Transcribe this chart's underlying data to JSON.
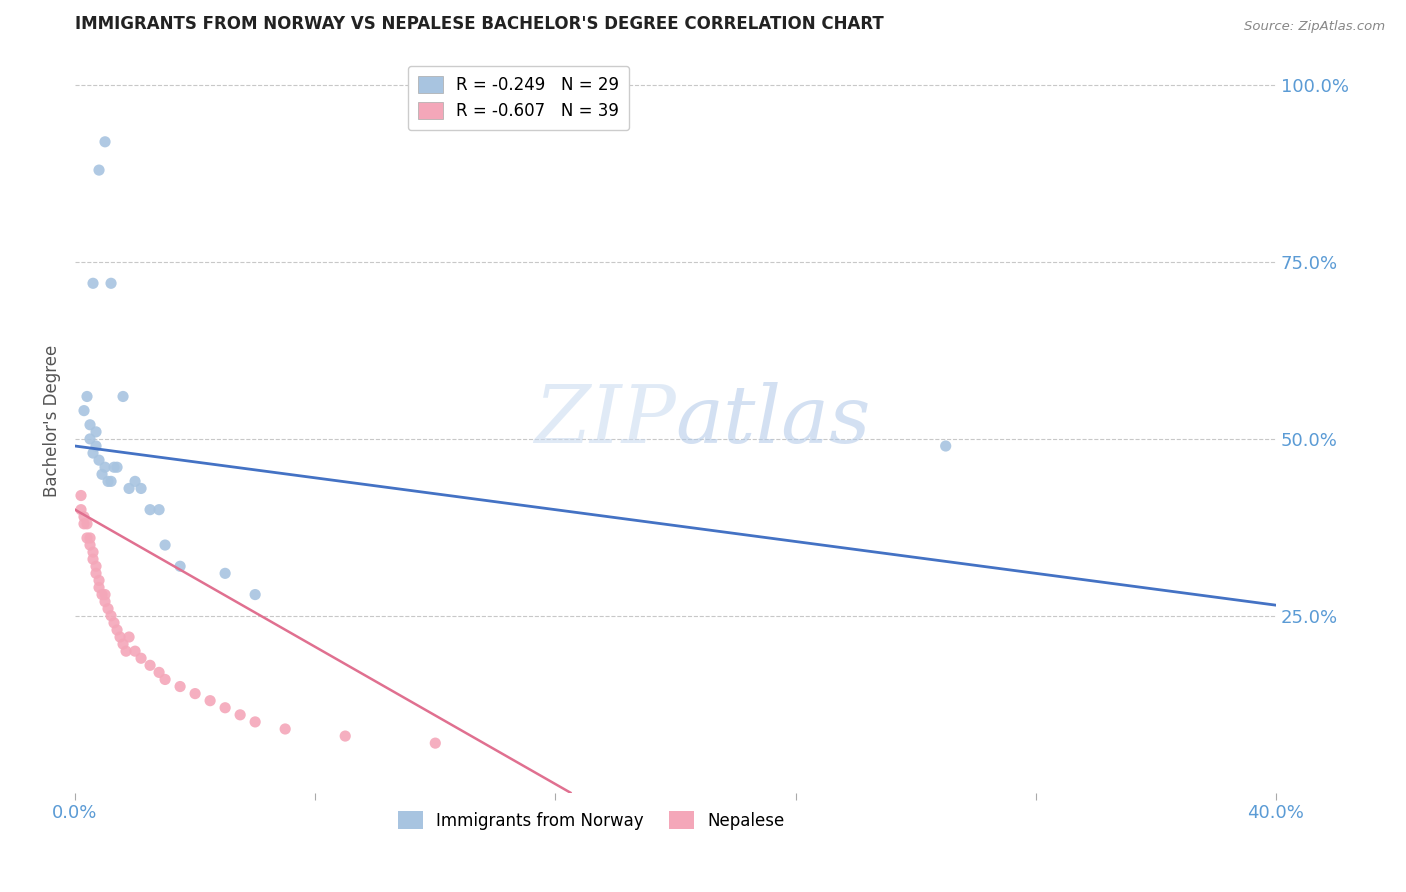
{
  "title": "IMMIGRANTS FROM NORWAY VS NEPALESE BACHELOR'S DEGREE CORRELATION CHART",
  "source": "Source: ZipAtlas.com",
  "ylabel": "Bachelor's Degree",
  "right_ytick_labels": [
    "100.0%",
    "75.0%",
    "50.0%",
    "25.0%"
  ],
  "right_ytick_values": [
    1.0,
    0.75,
    0.5,
    0.25
  ],
  "xlim": [
    0.0,
    0.4
  ],
  "ylim": [
    0.0,
    1.05
  ],
  "norway_R": -0.249,
  "norway_N": 29,
  "nepal_R": -0.607,
  "nepal_N": 39,
  "legend_label_norway": "Immigrants from Norway",
  "legend_label_nepal": "Nepalese",
  "norway_color": "#a8c4e0",
  "norway_line_color": "#4472c4",
  "nepal_color": "#f4a7b9",
  "nepal_line_color": "#e07090",
  "norway_scatter_x": [
    0.003,
    0.004,
    0.005,
    0.005,
    0.006,
    0.007,
    0.007,
    0.008,
    0.009,
    0.01,
    0.011,
    0.012,
    0.013,
    0.014,
    0.016,
    0.018,
    0.02,
    0.022,
    0.025,
    0.028,
    0.03,
    0.035,
    0.05,
    0.06,
    0.008,
    0.01,
    0.012,
    0.29,
    0.006
  ],
  "norway_scatter_y": [
    0.54,
    0.56,
    0.5,
    0.52,
    0.48,
    0.49,
    0.51,
    0.47,
    0.45,
    0.46,
    0.44,
    0.44,
    0.46,
    0.46,
    0.56,
    0.43,
    0.44,
    0.43,
    0.4,
    0.4,
    0.35,
    0.32,
    0.31,
    0.28,
    0.88,
    0.92,
    0.72,
    0.49,
    0.72
  ],
  "nepal_scatter_x": [
    0.002,
    0.002,
    0.003,
    0.003,
    0.004,
    0.004,
    0.005,
    0.005,
    0.006,
    0.006,
    0.007,
    0.007,
    0.008,
    0.008,
    0.009,
    0.01,
    0.01,
    0.011,
    0.012,
    0.013,
    0.014,
    0.015,
    0.016,
    0.017,
    0.018,
    0.02,
    0.022,
    0.025,
    0.028,
    0.03,
    0.035,
    0.04,
    0.045,
    0.05,
    0.055,
    0.06,
    0.07,
    0.09,
    0.12
  ],
  "nepal_scatter_y": [
    0.42,
    0.4,
    0.39,
    0.38,
    0.38,
    0.36,
    0.35,
    0.36,
    0.34,
    0.33,
    0.32,
    0.31,
    0.3,
    0.29,
    0.28,
    0.27,
    0.28,
    0.26,
    0.25,
    0.24,
    0.23,
    0.22,
    0.21,
    0.2,
    0.22,
    0.2,
    0.19,
    0.18,
    0.17,
    0.16,
    0.15,
    0.14,
    0.13,
    0.12,
    0.11,
    0.1,
    0.09,
    0.08,
    0.07
  ],
  "norway_trendline_x": [
    0.0,
    0.4
  ],
  "norway_trendline_y": [
    0.49,
    0.265
  ],
  "nepal_trendline_x": [
    0.0,
    0.165
  ],
  "nepal_trendline_y": [
    0.4,
    0.0
  ],
  "background_color": "#ffffff",
  "grid_color": "#c8c8c8",
  "title_color": "#222222",
  "axis_color": "#5b9bd5",
  "marker_size": 65,
  "watermark_zip": "ZIP",
  "watermark_atlas": "atlas",
  "watermark_color": "#dce9f5",
  "source_text": "Source: ZipAtlas.com"
}
